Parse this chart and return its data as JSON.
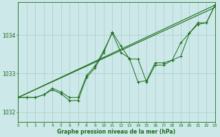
{
  "background_color": "#cce8e8",
  "grid_color": "#aacccc",
  "line_color": "#1a6b1a",
  "xlabel": "Graphe pression niveau de la mer (hPa)",
  "xlim": [
    0,
    23
  ],
  "ylim": [
    1031.75,
    1034.85
  ],
  "yticks": [
    1032,
    1033,
    1034
  ],
  "xticks": [
    0,
    1,
    2,
    3,
    4,
    5,
    6,
    7,
    8,
    9,
    10,
    11,
    12,
    13,
    14,
    15,
    16,
    17,
    18,
    19,
    20,
    21,
    22,
    23
  ],
  "trend1_x": [
    0,
    23
  ],
  "trend1_y": [
    1032.38,
    1034.78
  ],
  "trend2_x": [
    0,
    23
  ],
  "trend2_y": [
    1032.38,
    1034.78
  ],
  "jagged1_x": [
    0,
    1,
    2,
    3,
    4,
    5,
    6,
    7,
    8,
    9,
    10,
    11,
    12,
    13,
    14,
    15,
    16,
    17,
    18,
    19,
    20,
    21,
    22,
    23
  ],
  "jagged1_y": [
    1032.38,
    1032.38,
    1032.38,
    1032.45,
    1032.58,
    1032.48,
    1032.3,
    1032.3,
    1032.9,
    1033.15,
    1033.55,
    1034.08,
    1033.72,
    1033.38,
    1033.38,
    1032.78,
    1033.22,
    1033.22,
    1033.35,
    1033.45,
    1034.05,
    1034.28,
    1034.32,
    1034.78
  ],
  "jagged2_x": [
    0,
    1,
    2,
    3,
    4,
    5,
    6,
    7,
    8,
    9,
    10,
    11,
    12,
    13,
    14,
    15,
    16,
    17,
    18,
    19,
    20,
    21,
    22,
    23
  ],
  "jagged2_y": [
    1032.38,
    1032.38,
    1032.38,
    1032.45,
    1032.62,
    1032.52,
    1032.38,
    1032.38,
    1032.95,
    1033.2,
    1033.6,
    1034.05,
    1033.55,
    1033.4,
    1032.78,
    1032.82,
    1033.28,
    1033.28,
    1033.35,
    1033.8,
    1034.05,
    1034.32,
    1034.32,
    1034.78
  ]
}
